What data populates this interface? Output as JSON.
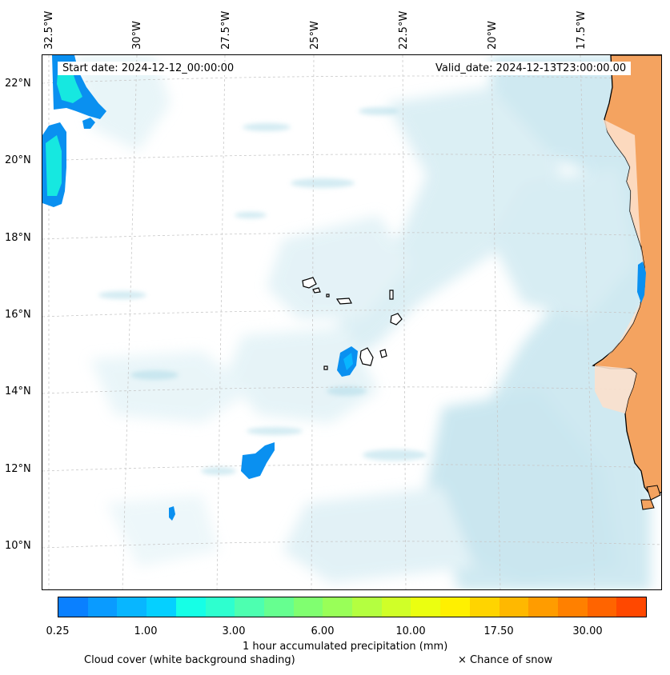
{
  "map": {
    "start_date": "Start date: 2024-12-12_00:00:00",
    "valid_date": "Valid_date: 2024-12-13T23:00:00.00",
    "longitude_labels": [
      "32.5°W",
      "30°W",
      "27.5°W",
      "25°W",
      "22.5°W",
      "20°W",
      "17.5°W"
    ],
    "latitude_labels": [
      "22°N",
      "20°N",
      "18°N",
      "16°N",
      "14°N",
      "12°N",
      "10°N"
    ],
    "land_color": "#f4a360",
    "cloud_color": "#a8d8e6",
    "precip_color": "#0a90f0"
  },
  "colorbar": {
    "colors": [
      "#0a80ff",
      "#0a9bff",
      "#08b6ff",
      "#05d0ff",
      "#16ffe6",
      "#2effcf",
      "#4dffb0",
      "#66ff90",
      "#80ff70",
      "#99ff58",
      "#b4ff40",
      "#d0ff28",
      "#ebff10",
      "#fff000",
      "#ffd400",
      "#ffb800",
      "#ff9c00",
      "#ff8000",
      "#ff6400",
      "#ff4800"
    ],
    "tick_labels": [
      "0.25",
      "1.00",
      "3.00",
      "6.00",
      "10.00",
      "17.50",
      "30.00"
    ],
    "label": "1 hour accumulated precipitation (mm)"
  },
  "legend": {
    "cloud_cover": "Cloud cover (white background shading)",
    "snow": "× Chance of snow"
  }
}
